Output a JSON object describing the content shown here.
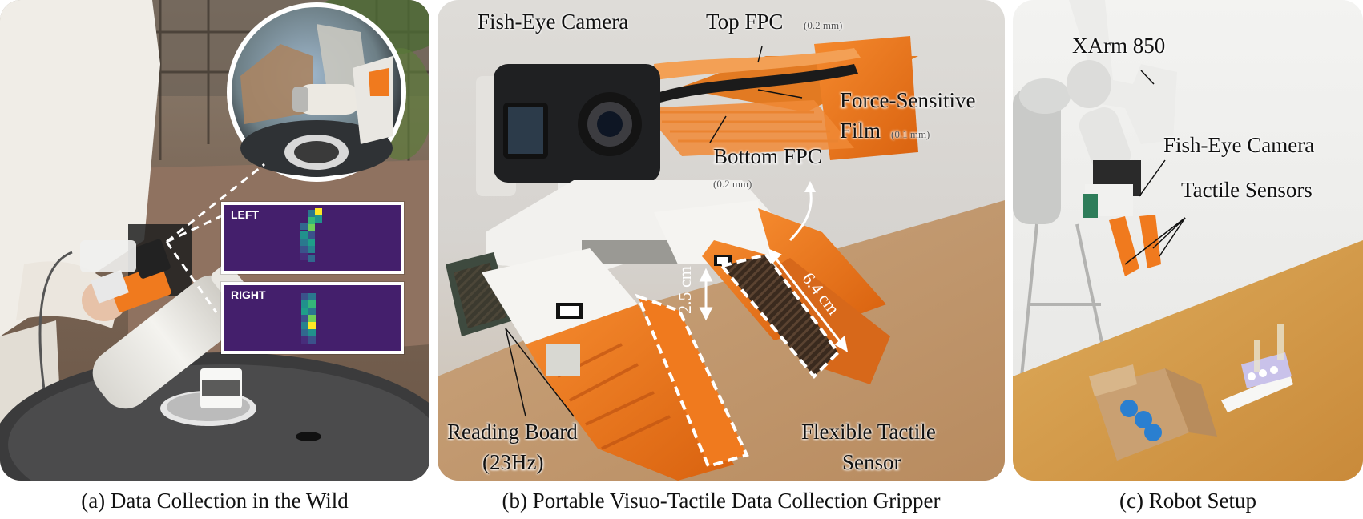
{
  "panel_a": {
    "caption": "(a) Data Collection in the Wild",
    "heatmap_left_label": "LEFT",
    "heatmap_right_label": "RIGHT"
  },
  "panel_b": {
    "caption": "(b) Portable Visuo-Tactile Data Collection Gripper",
    "fisheye_label": "Fish-Eye Camera",
    "top_fpc_label": "Top FPC",
    "top_fpc_size": "(0.2 mm)",
    "force_film_label_1": "Force-Sensitive",
    "force_film_label_2": "Film",
    "force_film_size": "(0.1 mm)",
    "bottom_fpc_label": "Bottom FPC",
    "bottom_fpc_size": "(0.2 mm)",
    "dim_width": "2.5 cm",
    "dim_length": "6.4 cm",
    "reading_board_label_1": "Reading Board",
    "reading_board_label_2": "(23Hz)",
    "tactile_sensor_label_1": "Flexible Tactile",
    "tactile_sensor_label_2": "Sensor"
  },
  "panel_c": {
    "caption": "(c) Robot Setup",
    "arm_label": "XArm 850",
    "camera_label": "Fish-Eye Camera",
    "tactile_label": "Tactile Sensors"
  },
  "colors": {
    "gripper_orange": "#f07a1e",
    "heatmap_background": "#441f6c",
    "table_wood": "#d49a48"
  }
}
